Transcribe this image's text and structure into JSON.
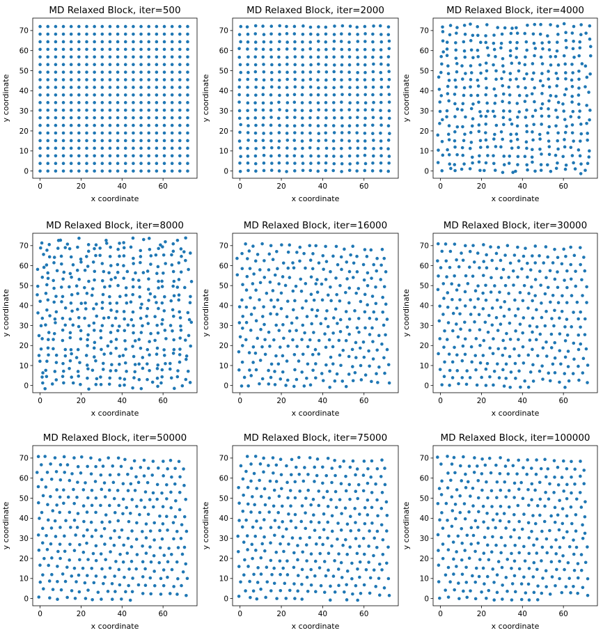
{
  "chart_data": [
    {
      "type": "scatter",
      "title": "MD Relaxed Block, iter=500",
      "xlabel": "x coordinate",
      "ylabel": "y coordinate",
      "xlim": [
        -3.6,
        76.6
      ],
      "ylim": [
        -3.6,
        76.2
      ],
      "xticks": [
        0,
        20,
        40,
        60
      ],
      "yticks": [
        0,
        10,
        20,
        30,
        40,
        50,
        60,
        70
      ],
      "pattern": "square lattice",
      "disorder": 0,
      "series": [
        {
          "color": "#1f77b4"
        }
      ]
    },
    {
      "type": "scatter",
      "title": "MD Relaxed Block, iter=2000",
      "xlabel": "x coordinate",
      "ylabel": "y coordinate",
      "xlim": [
        -3.6,
        76.6
      ],
      "ylim": [
        -3.6,
        76.2
      ],
      "xticks": [
        0,
        20,
        40,
        60
      ],
      "yticks": [
        0,
        10,
        20,
        30,
        40,
        50,
        60,
        70
      ],
      "pattern": "square lattice, edges slightly relaxed",
      "disorder": 0.15,
      "series": [
        {
          "color": "#1f77b4"
        }
      ]
    },
    {
      "type": "scatter",
      "title": "MD Relaxed Block, iter=4000",
      "xlabel": "x coordinate",
      "ylabel": "y coordinate",
      "xlim": [
        -3.6,
        76.6
      ],
      "ylim": [
        -3.6,
        76.2
      ],
      "xticks": [
        0,
        20,
        40,
        60
      ],
      "yticks": [
        0,
        10,
        20,
        30,
        40,
        50,
        60,
        70
      ],
      "pattern": "perturbed lattice",
      "disorder": 0.55,
      "series": [
        {
          "color": "#1f77b4"
        }
      ]
    },
    {
      "type": "scatter",
      "title": "MD Relaxed Block, iter=8000",
      "xlabel": "x coordinate",
      "ylabel": "y coordinate",
      "xlim": [
        -3.6,
        76.6
      ],
      "ylim": [
        -3.6,
        76.2
      ],
      "xticks": [
        0,
        20,
        40,
        60
      ],
      "yticks": [
        0,
        10,
        20,
        30,
        40,
        50,
        60,
        70
      ],
      "pattern": "disordered lattice",
      "disorder": 0.75,
      "series": [
        {
          "color": "#1f77b4"
        }
      ]
    },
    {
      "type": "scatter",
      "title": "MD Relaxed Block, iter=16000",
      "xlabel": "x coordinate",
      "ylabel": "y coordinate",
      "xlim": [
        -3.6,
        76.6
      ],
      "ylim": [
        -3.6,
        76.2
      ],
      "xticks": [
        0,
        20,
        40,
        60
      ],
      "yticks": [
        0,
        10,
        20,
        30,
        40,
        50,
        60,
        70
      ],
      "pattern": "relaxed triangular lattice",
      "disorder": 0.45,
      "series": [
        {
          "color": "#1f77b4"
        }
      ]
    },
    {
      "type": "scatter",
      "title": "MD Relaxed Block, iter=30000",
      "xlabel": "x coordinate",
      "ylabel": "y coordinate",
      "xlim": [
        -3.6,
        76.6
      ],
      "ylim": [
        -3.6,
        76.2
      ],
      "xticks": [
        0,
        20,
        40,
        60
      ],
      "yticks": [
        0,
        10,
        20,
        30,
        40,
        50,
        60,
        70
      ],
      "pattern": "relaxed triangular lattice",
      "disorder": 0.35,
      "series": [
        {
          "color": "#1f77b4"
        }
      ]
    },
    {
      "type": "scatter",
      "title": "MD Relaxed Block, iter=50000",
      "xlabel": "x coordinate",
      "ylabel": "y coordinate",
      "xlim": [
        -3.6,
        76.6
      ],
      "ylim": [
        -3.6,
        76.2
      ],
      "xticks": [
        0,
        20,
        40,
        60
      ],
      "yticks": [
        0,
        10,
        20,
        30,
        40,
        50,
        60,
        70
      ],
      "pattern": "relaxed triangular lattice",
      "disorder": 0.3,
      "series": [
        {
          "color": "#1f77b4"
        }
      ]
    },
    {
      "type": "scatter",
      "title": "MD Relaxed Block, iter=75000",
      "xlabel": "x coordinate",
      "ylabel": "y coordinate",
      "xlim": [
        -3.6,
        76.6
      ],
      "ylim": [
        -3.6,
        76.2
      ],
      "xticks": [
        0,
        20,
        40,
        60
      ],
      "yticks": [
        0,
        10,
        20,
        30,
        40,
        50,
        60,
        70
      ],
      "pattern": "relaxed triangular lattice",
      "disorder": 0.3,
      "series": [
        {
          "color": "#1f77b4"
        }
      ]
    },
    {
      "type": "scatter",
      "title": "MD Relaxed Block, iter=100000",
      "xlabel": "x coordinate",
      "ylabel": "y coordinate",
      "xlim": [
        -3.6,
        76.6
      ],
      "ylim": [
        -3.6,
        76.2
      ],
      "xticks": [
        0,
        20,
        40,
        60
      ],
      "yticks": [
        0,
        10,
        20,
        30,
        40,
        50,
        60,
        70
      ],
      "pattern": "relaxed triangular lattice",
      "disorder": 0.3,
      "series": [
        {
          "color": "#1f77b4"
        }
      ]
    }
  ]
}
